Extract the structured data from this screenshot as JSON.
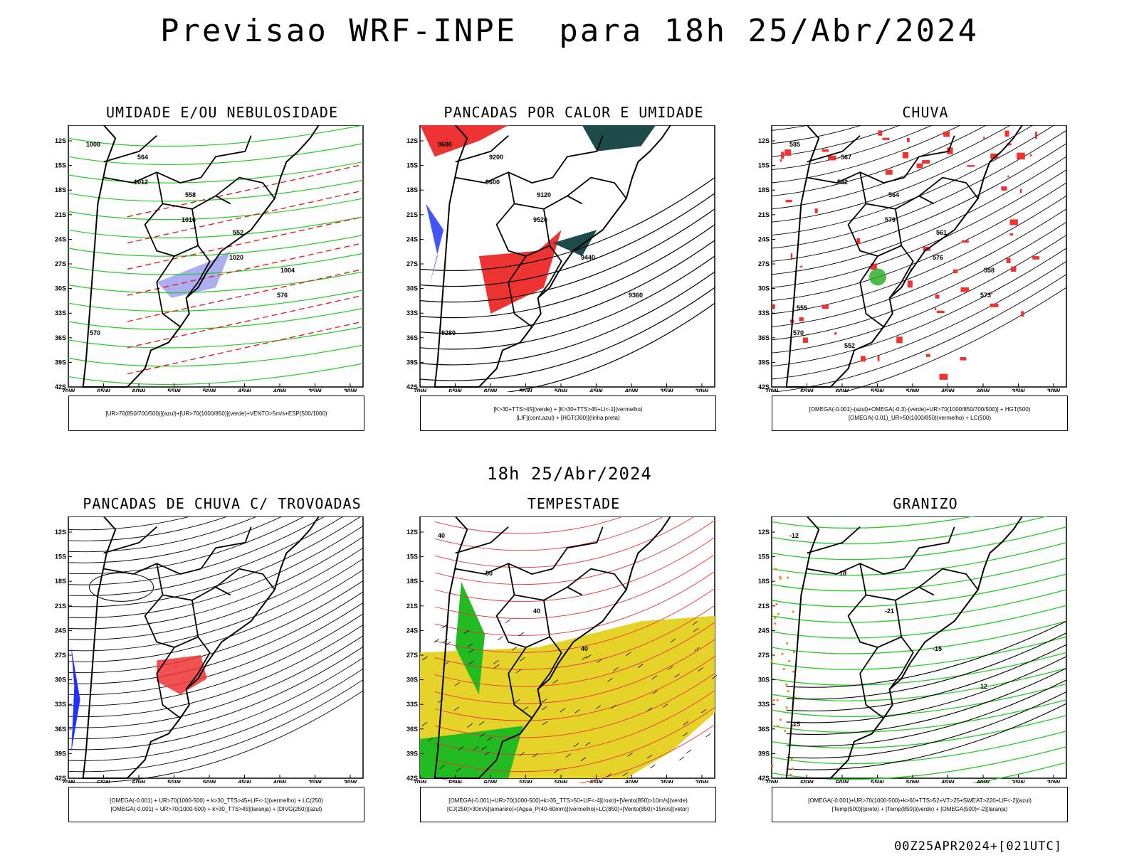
{
  "title": "Previsao WRF-INPE  para 18h 25/Abr/2024",
  "mid_title": "18h 25/Abr/2024",
  "footer": "00Z25APR2024+[021UTC]",
  "axis": {
    "lat": [
      "12S",
      "15S",
      "18S",
      "21S",
      "24S",
      "27S",
      "30S",
      "33S",
      "36S",
      "39S",
      "42S"
    ],
    "lon": [
      "70W",
      "65W",
      "60W",
      "55W",
      "50W",
      "45W",
      "40W",
      "35W",
      "30W"
    ]
  },
  "panels": [
    {
      "title": "UMIDADE E/OU NEBULOSIDADE",
      "legend": [
        "[UR>70(850/700/500)](azul)+[UR>70(1000/850)](verde)+VENTO>5m/s+ESP(500/1000)"
      ],
      "labels": [
        "1008",
        "1012",
        "1016",
        "1020",
        "576",
        "570",
        "564",
        "558",
        "552",
        "1004"
      ],
      "colors": {
        "fill": "#9999ee",
        "line": "#22cc22",
        "dash": "#e02020"
      }
    },
    {
      "title": "PANCADAS POR CALOR E UMIDADE",
      "legend": [
        "[K>30+TTS>45](verde) + [K>30+TTS>45+LI<-1](vermelho)",
        "[LIF](cont.azul) + [HGT(300)](linha preta)"
      ],
      "labels": [
        "9680",
        "9600",
        "9520",
        "9440",
        "9360",
        "9280",
        "9200",
        "9120"
      ],
      "colors": {
        "fill": "#ee3333",
        "dark": "#1f4a4a",
        "line": "#2233ff"
      }
    },
    {
      "title": "CHUVA",
      "legend": [
        "[OMEGA(-0.001)-(azul)+OMEGA(-0.3)-(verde)+UR>70(1000/850/700/500)] + HGT(500)",
        "[OMEGA(-0.01)_UR>50(1000/850)(vermelho) + LC(500)"
      ],
      "labels": [
        "585",
        "582",
        "579",
        "576",
        "573",
        "570",
        "567",
        "564",
        "561",
        "558",
        "555",
        "552"
      ],
      "colors": {
        "fill": "#ee3333",
        "green": "#22aa22",
        "blue": "#2233ff"
      }
    },
    {
      "title": "PANCADAS DE CHUVA C/ TROVOADAS",
      "legend": [
        "[OMEGA(-0.001) + UR>70(1000-500) + k>30_TTS>45+LIF<-1](vermelho) + LC(250)",
        "[OMEGA(-0.001) + UR>70(1000-500) + k>30_TTS>45](laranja) + [DIVG(250)](azul)"
      ],
      "labels": [],
      "colors": {
        "fill": "#ee3333",
        "blue": "#2233ff"
      }
    },
    {
      "title": "TEMPESTADE",
      "legend": [
        "[OMEGA(-0.001)+UR>70(1000-500)+k>35_TTS>50+LIF<-4](roxo)+[Vento(850)>10m/s](verde)",
        "[CJ(250)>30m/s](amarelo)+[Agua_P(40-60mm)](vermelho)+LC(850)+[Vento(850)>15m/s](vetor)"
      ],
      "labels": [
        "40",
        "50",
        "40",
        "40"
      ],
      "colors": {
        "yellow": "#e6d32a",
        "green": "#22bb22",
        "red": "#ee3333"
      }
    },
    {
      "title": "GRANIZO",
      "legend": [
        "[OMEGA(-0.001)+UR>70(1000-500)+k>60+TTS>52+VT>25+SWEAT>220+LIF<-2](azul)",
        "[Temp(500)](preto) + [Temp(850)](verde) + [OMEGA(500)<-2](laranja)"
      ],
      "labels": [
        "-12",
        "-18",
        "-21",
        "-15",
        "12",
        "15"
      ],
      "colors": {
        "green": "#22cc22",
        "orange": "#ee8822"
      }
    }
  ]
}
